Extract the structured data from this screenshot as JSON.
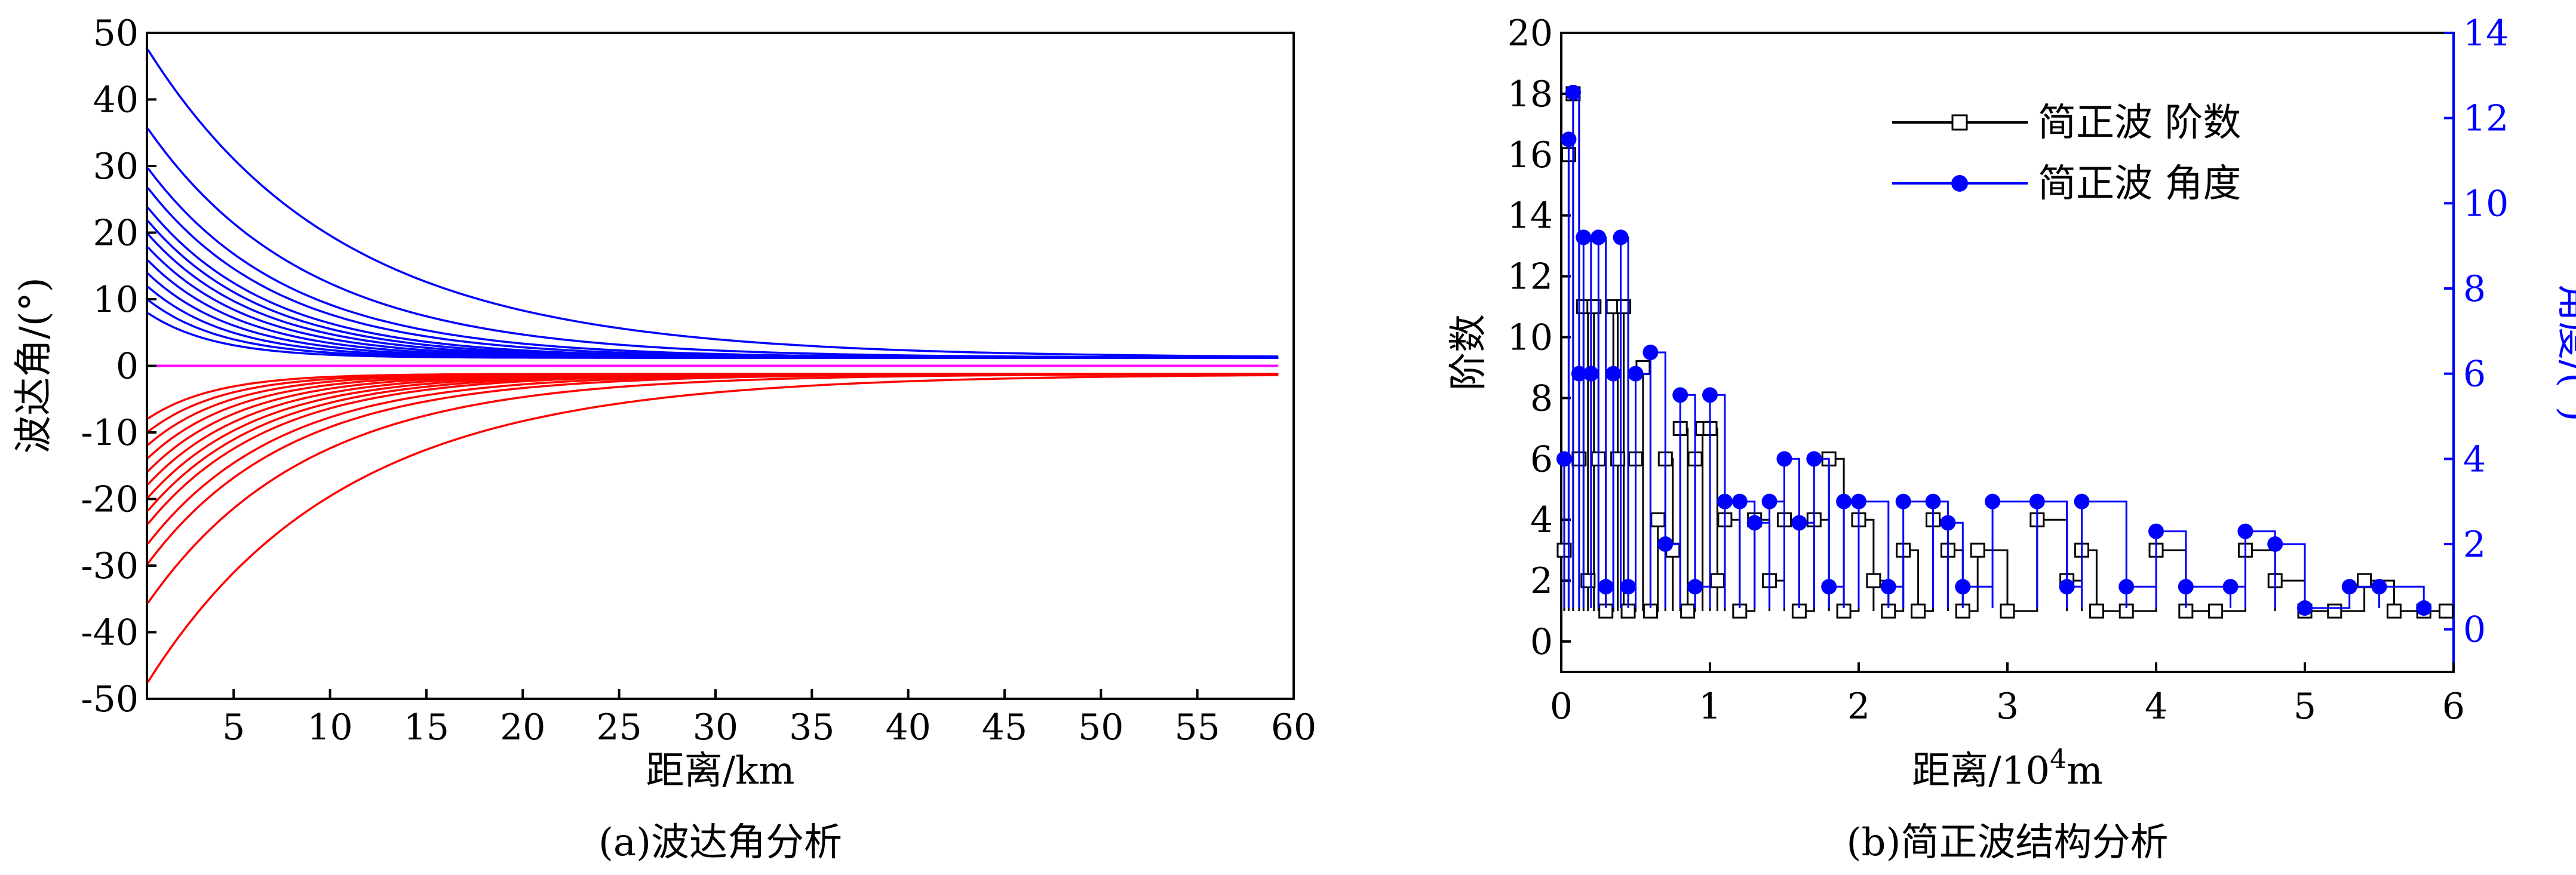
{
  "chart_data": [
    {
      "type": "line",
      "title": "",
      "caption": "(a)波达角分析",
      "xlabel": "距离/km",
      "ylabel": "波达角/(°)",
      "xlim": [
        0.5,
        60
      ],
      "ylim": [
        -50,
        50
      ],
      "xticks": [
        5,
        10,
        15,
        20,
        25,
        30,
        35,
        40,
        45,
        50,
        55,
        60
      ],
      "yticks": [
        -50,
        -40,
        -30,
        -20,
        -10,
        0,
        10,
        20,
        30,
        40,
        50
      ],
      "grid": false,
      "legend": "none",
      "colors": {
        "positive": "#0000ff",
        "negative": "#ff0000",
        "zero": "#ff00ff"
      },
      "series_note": "",
      "curve_family": {
        "initial_angles_positive": [
          48,
          36,
          30,
          27,
          24,
          22,
          20,
          18,
          16,
          14,
          12,
          10,
          8
        ],
        "initial_angles_negative": [
          -48,
          -36,
          -30,
          -27,
          -24,
          -22,
          -20,
          -18,
          -16,
          -14,
          -12,
          -10,
          -8
        ],
        "value_at_x_59": 1.2,
        "zero_line": 0
      }
    },
    {
      "type": "line",
      "title": "",
      "caption": "(b)简正波结构分析",
      "xlabel": "距离/10⁴m",
      "xlabel_base": "距离/10",
      "xlabel_sup": "4",
      "xlabel_unit": "m",
      "ylabel_left": "阶数",
      "ylabel_right": "角度/(°)",
      "xlim": [
        0,
        6
      ],
      "ylim_left": [
        -1,
        20
      ],
      "ylim_right": [
        -1,
        14
      ],
      "xticks": [
        0,
        1,
        2,
        3,
        4,
        5,
        6
      ],
      "yticks_left": [
        0,
        2,
        4,
        6,
        8,
        10,
        12,
        14,
        16,
        18,
        20
      ],
      "yticks_right": [
        0,
        2,
        4,
        6,
        8,
        10,
        12,
        14
      ],
      "grid": false,
      "legend": "top-right",
      "series": [
        {
          "name": "简正波 阶数",
          "axis": "left",
          "color": "#000000",
          "marker": "open-square",
          "x": [
            0.02,
            0.05,
            0.08,
            0.12,
            0.15,
            0.18,
            0.22,
            0.25,
            0.3,
            0.35,
            0.38,
            0.42,
            0.45,
            0.5,
            0.55,
            0.6,
            0.65,
            0.7,
            0.75,
            0.8,
            0.85,
            0.9,
            0.95,
            1.0,
            1.05,
            1.1,
            1.2,
            1.3,
            1.4,
            1.5,
            1.6,
            1.7,
            1.8,
            1.9,
            2.0,
            2.1,
            2.2,
            2.3,
            2.4,
            2.5,
            2.6,
            2.7,
            2.8,
            3.0,
            3.2,
            3.4,
            3.5,
            3.6,
            3.8,
            4.0,
            4.2,
            4.4,
            4.6,
            4.8,
            5.0,
            5.2,
            5.4,
            5.6,
            5.8,
            5.95
          ],
          "y": [
            3,
            16,
            18,
            6,
            11,
            2,
            11,
            6,
            1,
            11,
            6,
            11,
            1,
            6,
            9,
            1,
            4,
            6,
            3,
            7,
            1,
            6,
            7,
            7,
            2,
            4,
            1,
            4,
            2,
            4,
            1,
            4,
            6,
            1,
            4,
            2,
            1,
            3,
            1,
            4,
            3,
            1,
            3,
            1,
            4,
            2,
            3,
            1,
            1,
            3,
            1,
            1,
            3,
            2,
            1,
            1,
            2,
            1,
            1,
            1
          ]
        },
        {
          "name": "简正波 角度",
          "axis": "right",
          "color": "#0000ff",
          "marker": "filled-circle",
          "x": [
            0.02,
            0.05,
            0.08,
            0.12,
            0.15,
            0.2,
            0.25,
            0.3,
            0.35,
            0.4,
            0.45,
            0.5,
            0.6,
            0.7,
            0.8,
            0.9,
            1.0,
            1.1,
            1.2,
            1.3,
            1.4,
            1.5,
            1.6,
            1.7,
            1.8,
            1.9,
            2.0,
            2.2,
            2.3,
            2.5,
            2.6,
            2.7,
            2.9,
            3.2,
            3.4,
            3.5,
            3.8,
            4.0,
            4.2,
            4.5,
            4.6,
            4.8,
            5.0,
            5.3,
            5.5,
            5.8
          ],
          "y": [
            4,
            11.5,
            12.6,
            6,
            9.2,
            6,
            9.2,
            1,
            6,
            9.2,
            1,
            6,
            6.5,
            2,
            5.5,
            1,
            5.5,
            3,
            3,
            2.5,
            3,
            4,
            2.5,
            4,
            1,
            3,
            3,
            1,
            3,
            3,
            2.5,
            1,
            3,
            3,
            1,
            3,
            1,
            2.3,
            1,
            1,
            2.3,
            2,
            0.5,
            1,
            1,
            0.5
          ]
        }
      ]
    }
  ]
}
